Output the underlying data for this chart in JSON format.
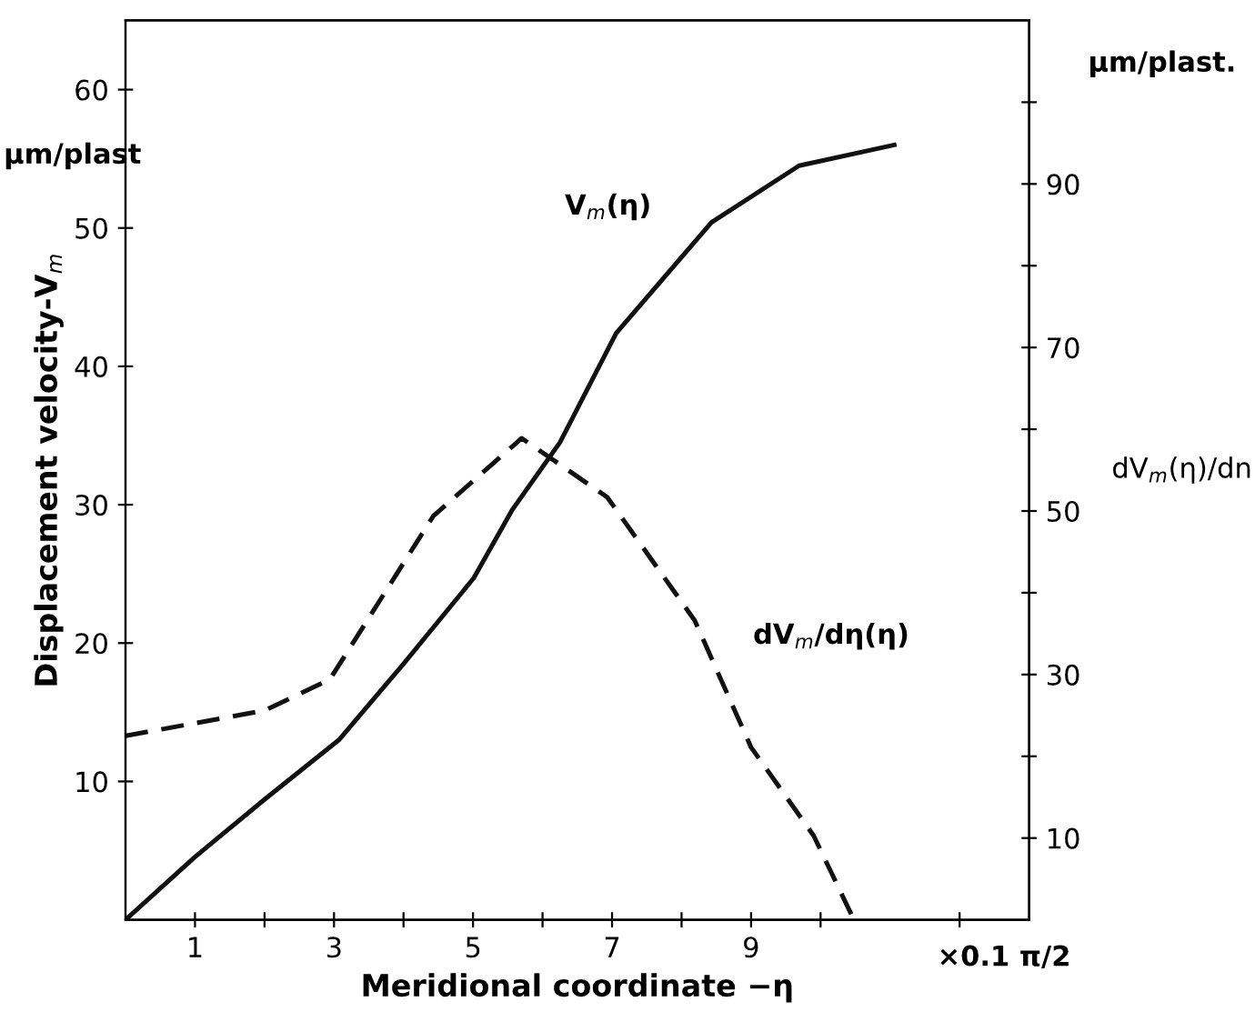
{
  "chart_data": {
    "type": "line",
    "xlabel": "Meridional coordinate −η",
    "ylabel": "Displacement velocity-V$_{m}$",
    "y2label": "dV$_{m}$(η)/dn",
    "xlim": [
      0,
      13
    ],
    "ylim": [
      0,
      65
    ],
    "y2lim": [
      0,
      110
    ],
    "xticks": [
      {
        "value": 1,
        "label": "1"
      },
      {
        "value": 2,
        "label": null
      },
      {
        "value": 3,
        "label": "3"
      },
      {
        "value": 4,
        "label": null
      },
      {
        "value": 5,
        "label": "5"
      },
      {
        "value": 6,
        "label": null
      },
      {
        "value": 7,
        "label": "7"
      },
      {
        "value": 8,
        "label": null
      },
      {
        "value": 9,
        "label": "9"
      },
      {
        "value": 10,
        "label": null
      },
      {
        "value": 12,
        "label": null
      }
    ],
    "yticks": [
      10,
      20,
      30,
      40,
      50,
      60
    ],
    "y2ticks": [
      {
        "value": 10,
        "label": "10"
      },
      {
        "value": 20,
        "label": null
      },
      {
        "value": 30,
        "label": "30"
      },
      {
        "value": 40,
        "label": null
      },
      {
        "value": 50,
        "label": "50"
      },
      {
        "value": 60,
        "label": null
      },
      {
        "value": 70,
        "label": "70"
      },
      {
        "value": 80,
        "label": null
      },
      {
        "value": 90,
        "label": "90"
      },
      {
        "value": 100,
        "label": null
      }
    ],
    "grid": false,
    "legend": false,
    "marker": "none",
    "series": [
      {
        "color": "#111111",
        "line_style": "solid",
        "x": [
          0,
          0.99,
          2,
          3.07,
          4,
          5.01,
          5.56,
          6.25,
          7.06,
          8.43,
          9.69,
          11.06
        ],
        "values": [
          0,
          4.5,
          8.7,
          13,
          18.5,
          24.7,
          29.6,
          34.5,
          42.4,
          50.4,
          54.5,
          56
        ]
      },
      {
        "axis": "y2",
        "color": "#111111",
        "line_style": "dashed",
        "x": [
          0,
          2.0,
          2.94,
          4.43,
          5.7,
          6.93,
          8.19,
          9.0,
          9.9,
          10.48
        ],
        "values": [
          22.5,
          25.6,
          29.4,
          49.4,
          58.9,
          51.7,
          36.6,
          21.1,
          10.3,
          0
        ]
      }
    ],
    "annotations": [
      "V$_{m}$(η)",
      "dV$_{m}$/dη(η)",
      "µm/plast",
      "µm/plast.",
      "×0.1 π/2"
    ]
  }
}
